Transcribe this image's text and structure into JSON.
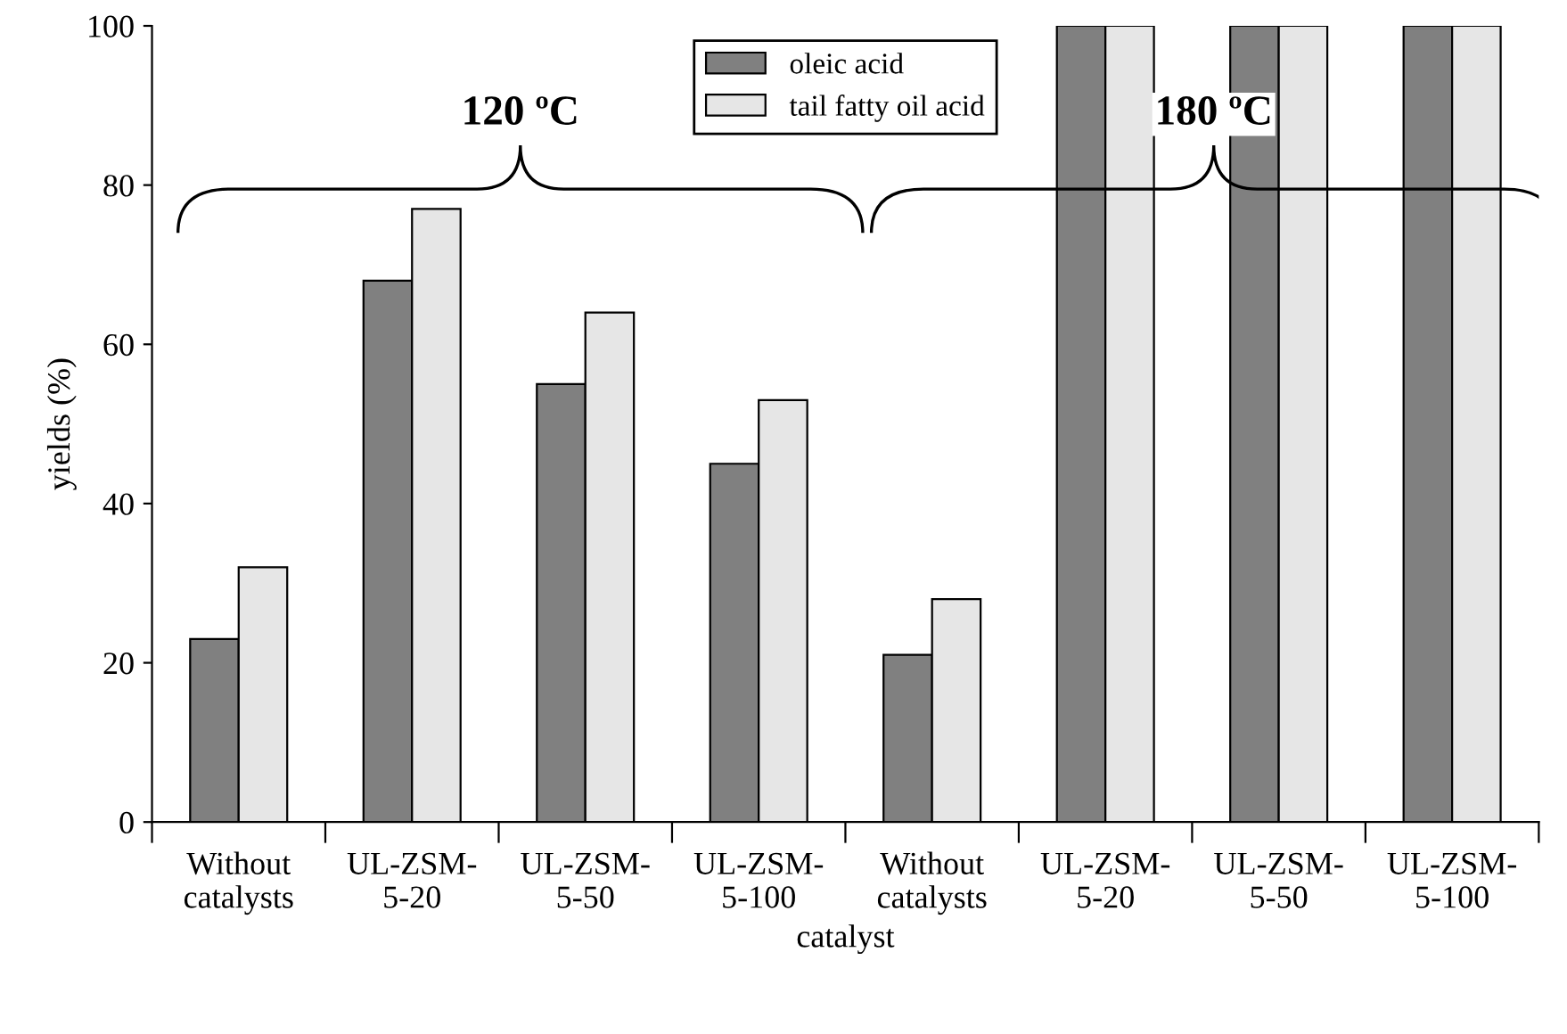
{
  "chart_data": {
    "type": "bar",
    "categories": [
      "Without\ncatalysts",
      "UL-ZSM-\n5-20",
      "UL-ZSM-\n5-50",
      "UL-ZSM-\n5-100",
      "Without\ncatalysts",
      "UL-ZSM-\n5-20",
      "UL-ZSM-\n5-50",
      "UL-ZSM-\n5-100"
    ],
    "series": [
      {
        "name": "oleic acid",
        "color": "#808080",
        "values": [
          23,
          68,
          55,
          45,
          21,
          100,
          100,
          100
        ]
      },
      {
        "name": "tail fatty oil acid",
        "color": "#e6e6e6",
        "values": [
          32,
          77,
          64,
          53,
          28,
          100,
          100,
          100
        ]
      }
    ],
    "xlabel": "catalyst",
    "ylabel": "yields (%)",
    "ylim": [
      0,
      100
    ],
    "yticks": [
      0,
      20,
      40,
      60,
      80,
      100
    ],
    "annotations": [
      "120 ºC",
      "180 ºC"
    ],
    "legend": "top",
    "grid": false
  }
}
